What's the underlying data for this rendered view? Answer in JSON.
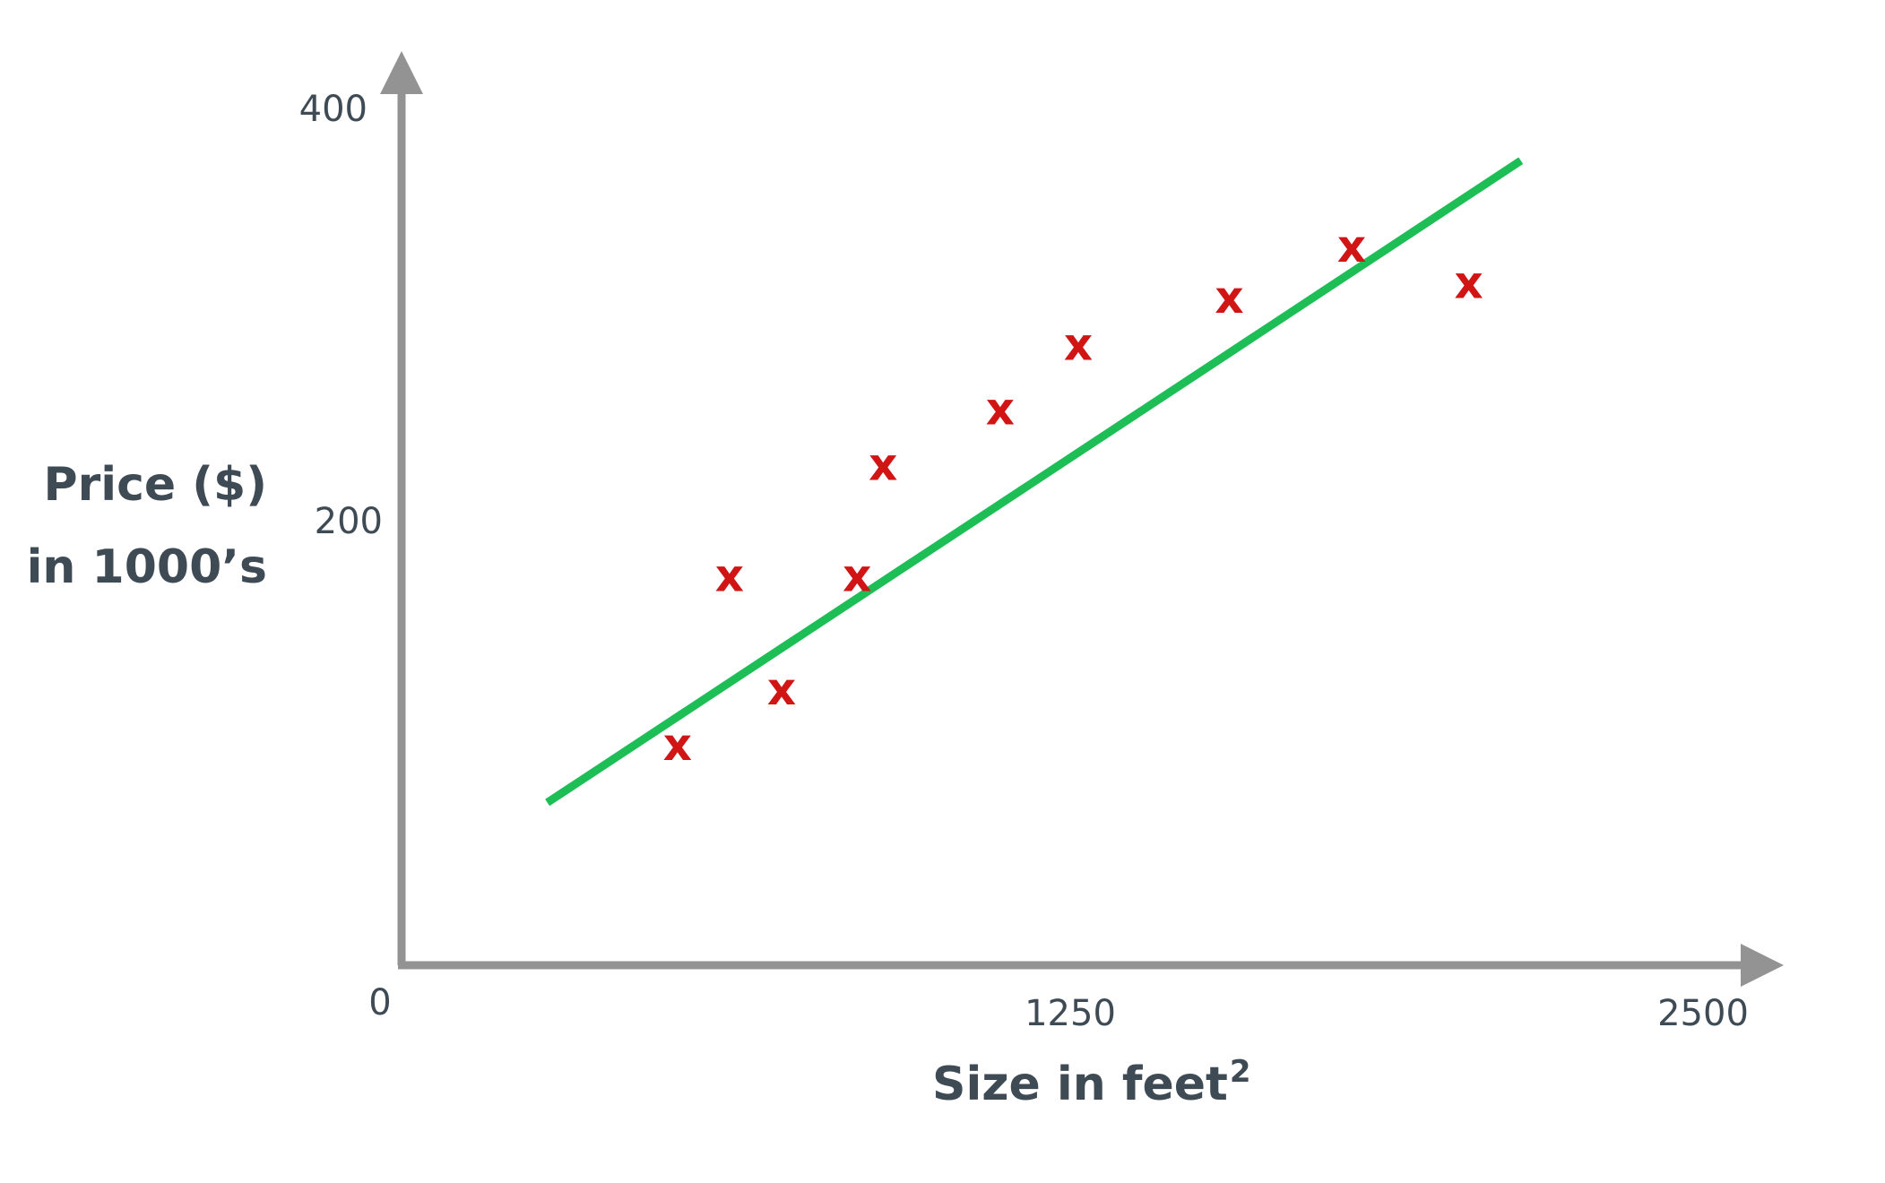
{
  "chart_data": {
    "type": "scatter",
    "title": "",
    "xlabel": "Size in feet",
    "xlabel_superscript": "2",
    "ylabel_lines": [
      "Price ($)",
      "in 1000’s"
    ],
    "xlim": [
      0,
      2500
    ],
    "ylim": [
      0,
      400
    ],
    "x_ticks": [
      "0",
      "1250",
      "2500"
    ],
    "y_ticks": [
      "200",
      "400"
    ],
    "grid": false,
    "legend": "none",
    "marker_symbol": "x",
    "points": [
      {
        "x": 530,
        "y": 103
      },
      {
        "x": 630,
        "y": 182
      },
      {
        "x": 730,
        "y": 129
      },
      {
        "x": 875,
        "y": 182
      },
      {
        "x": 925,
        "y": 234
      },
      {
        "x": 1150,
        "y": 260
      },
      {
        "x": 1300,
        "y": 290
      },
      {
        "x": 1590,
        "y": 312
      },
      {
        "x": 1825,
        "y": 336
      },
      {
        "x": 2050,
        "y": 319
      }
    ],
    "fit_line": {
      "x": [
        280,
        2150
      ],
      "y": [
        76,
        376
      ]
    },
    "colors": {
      "axis": "#939393",
      "points": "#d11414",
      "fit_line": "#1cbe55",
      "text": "#3e4a54"
    }
  }
}
